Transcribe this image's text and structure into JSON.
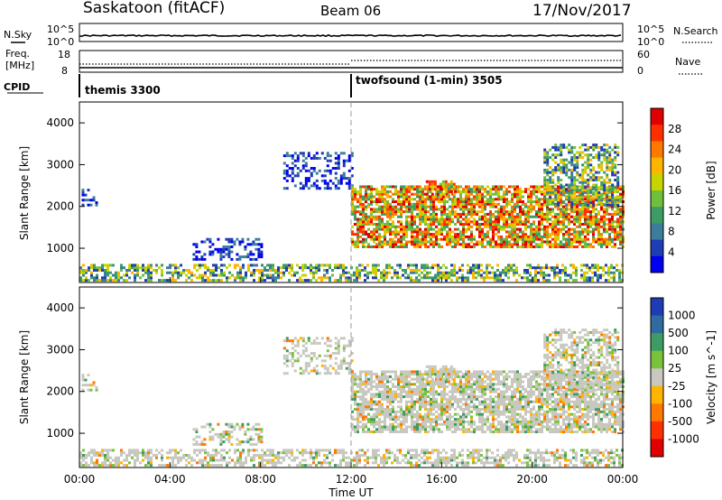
{
  "header": {
    "title": "Saskatoon (fitACF)",
    "beam": "Beam 06",
    "date": "17/Nov/2017"
  },
  "sky_panel": {
    "left_label": "N.Sky",
    "left_ticks": [
      "10^5",
      "10^0"
    ],
    "right_ticks": [
      "10^5",
      "10^0"
    ],
    "right_label": "N.Search"
  },
  "freq_panel": {
    "left_label_1": "Freq.",
    "left_label_2": "[MHz]",
    "left_ticks": [
      "18",
      "8"
    ],
    "right_ticks": [
      "60",
      "0"
    ],
    "right_label": "Nave"
  },
  "cpid_panel": {
    "label": "CPID",
    "programs": [
      {
        "name": "themis 3300",
        "start_hour": 0
      },
      {
        "name": "twofsound (1-min) 3505",
        "start_hour": 12
      }
    ]
  },
  "x_axis": {
    "ticks": [
      "00:00",
      "04:00",
      "08:00",
      "12:00",
      "16:00",
      "20:00",
      "00:00"
    ],
    "label": "Time UT"
  },
  "power_panel": {
    "ylabel": "Slant Range [km]",
    "yticks": [
      "4000",
      "3000",
      "2000",
      "1000"
    ],
    "colorbar_label": "Power [dB]",
    "colorbar_ticks": [
      "28",
      "24",
      "20",
      "16",
      "12",
      "8",
      "4"
    ],
    "colors": [
      "#0000ee",
      "#1e3cb4",
      "#3c7d9c",
      "#3c9c64",
      "#6fbf3c",
      "#c8d400",
      "#ffb400",
      "#ff7800",
      "#ff3000",
      "#e00000"
    ]
  },
  "velocity_panel": {
    "ylabel": "Slant Range [km]",
    "yticks": [
      "4000",
      "3000",
      "2000",
      "1000"
    ],
    "colorbar_label": "Velocity [m s^-1]",
    "colorbar_ticks": [
      "1000",
      "500",
      "100",
      "25",
      "-25",
      "-100",
      "-500",
      "-1000"
    ],
    "colors": [
      "#1e3cb4",
      "#2f6aa0",
      "#3c9c64",
      "#7ac23c",
      "#c8c8c0",
      "#ffb400",
      "#ff7800",
      "#ff3000",
      "#e00000"
    ]
  },
  "chart_data": {
    "type": "heatmap",
    "x_range_hours": [
      0,
      24
    ],
    "y_range_km": [
      180,
      4500
    ],
    "echo_bands": [
      {
        "from_hour": 0.0,
        "to_hour": 24.0,
        "range_km": [
          200,
          600
        ],
        "strength": "medium"
      },
      {
        "from_hour": 0.1,
        "to_hour": 0.7,
        "range_km": [
          2000,
          2400
        ],
        "strength": "weak"
      },
      {
        "from_hour": 5.0,
        "to_hour": 8.0,
        "range_km": [
          700,
          1200
        ],
        "strength": "weak"
      },
      {
        "from_hour": 9.0,
        "to_hour": 12.0,
        "range_km": [
          2400,
          3300
        ],
        "strength": "weak"
      },
      {
        "from_hour": 12.0,
        "to_hour": 24.0,
        "range_km": [
          1000,
          2500
        ],
        "strength": "strong"
      },
      {
        "from_hour": 15.3,
        "to_hour": 16.5,
        "range_km": [
          2200,
          2600
        ],
        "strength": "strong"
      },
      {
        "from_hour": 20.5,
        "to_hour": 23.8,
        "range_km": [
          2000,
          3500
        ],
        "strength": "medium"
      }
    ]
  }
}
